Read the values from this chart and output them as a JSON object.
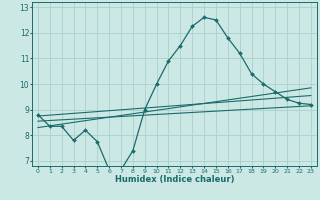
{
  "xlabel": "Humidex (Indice chaleur)",
  "ylabel": "",
  "bg_color": "#cce8e5",
  "grid_color": "#aacfcc",
  "line_color": "#1a6b6b",
  "xlim": [
    -0.5,
    23.5
  ],
  "ylim": [
    6.8,
    13.2
  ],
  "yticks": [
    7,
    8,
    9,
    10,
    11,
    12,
    13
  ],
  "xticks": [
    0,
    1,
    2,
    3,
    4,
    5,
    6,
    7,
    8,
    9,
    10,
    11,
    12,
    13,
    14,
    15,
    16,
    17,
    18,
    19,
    20,
    21,
    22,
    23
  ],
  "line1_x": [
    0,
    1,
    2,
    3,
    4,
    5,
    6,
    7,
    8,
    9,
    10,
    11,
    12,
    13,
    14,
    15,
    16,
    17,
    18,
    19,
    20,
    21,
    22,
    23
  ],
  "line1_y": [
    8.8,
    8.35,
    8.35,
    7.8,
    8.2,
    7.75,
    6.65,
    6.65,
    7.4,
    9.0,
    10.0,
    10.9,
    11.5,
    12.25,
    12.6,
    12.5,
    11.8,
    11.2,
    10.4,
    10.0,
    9.7,
    9.4,
    9.25,
    9.2
  ],
  "line2_x": [
    0,
    23
  ],
  "line2_y": [
    8.55,
    9.15
  ],
  "line3_x": [
    0,
    23
  ],
  "line3_y": [
    8.75,
    9.55
  ],
  "line4_x": [
    0,
    23
  ],
  "line4_y": [
    8.3,
    9.85
  ]
}
